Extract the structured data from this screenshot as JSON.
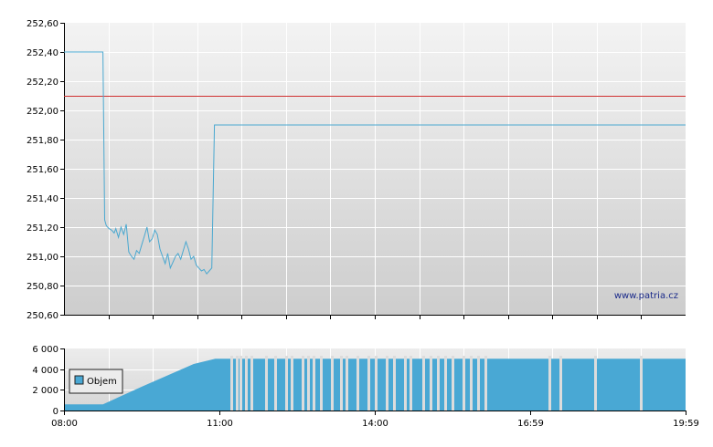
{
  "watermark": "www.patria.cz",
  "colors": {
    "price_line": "#4aa8d0",
    "reference_line": "#d03030",
    "volume_fill": "#49a8d4",
    "grid": "#ffffff",
    "plot_bg_top": "#f2f2f2",
    "plot_bg_bottom": "#cfcfcf"
  },
  "chart_data": [
    {
      "type": "line",
      "name": "price",
      "ylim": [
        250.6,
        252.6
      ],
      "y_ticks": [
        250.6,
        250.8,
        251.0,
        251.2,
        251.4,
        251.6,
        251.8,
        252.0,
        252.2,
        252.4,
        252.6
      ],
      "y_tick_labels": [
        "250,60",
        "250,80",
        "251,00",
        "251,20",
        "251,40",
        "251,60",
        "251,80",
        "252,00",
        "252,20",
        "252,40",
        "252,60"
      ],
      "reference_value": 252.1,
      "series": [
        {
          "x": [
            "08:00",
            "08:45",
            "08:47",
            "08:49",
            "08:52",
            "08:55",
            "08:58",
            "09:00",
            "09:03",
            "09:06",
            "09:09",
            "09:12",
            "09:15",
            "09:18",
            "09:21",
            "09:24",
            "09:27",
            "09:30",
            "09:33",
            "09:36",
            "09:39",
            "09:42",
            "09:45",
            "09:48",
            "09:51",
            "09:54",
            "09:57",
            "10:00",
            "10:03",
            "10:06",
            "10:09",
            "10:12",
            "10:15",
            "10:18",
            "10:21",
            "10:24",
            "10:27",
            "10:30",
            "10:33",
            "10:36",
            "10:39",
            "10:42",
            "10:45",
            "10:48",
            "10:51",
            "10:54",
            "10:57",
            "10:59",
            "11:00",
            "11:03",
            "19:59"
          ],
          "values": [
            252.4,
            252.4,
            251.25,
            251.21,
            251.19,
            251.18,
            251.16,
            251.19,
            251.13,
            251.2,
            251.15,
            251.22,
            251.03,
            251.0,
            250.98,
            251.04,
            251.02,
            251.08,
            251.14,
            251.2,
            251.1,
            251.12,
            251.18,
            251.15,
            251.05,
            251.0,
            250.95,
            251.02,
            250.92,
            250.96,
            251.0,
            251.02,
            250.98,
            251.04,
            251.1,
            251.05,
            250.98,
            251.0,
            250.94,
            250.92,
            250.9,
            250.91,
            250.88,
            250.9,
            250.92,
            251.9,
            251.9,
            251.9,
            251.9,
            251.9,
            251.9
          ]
        }
      ]
    },
    {
      "type": "bar",
      "name": "volume",
      "ylim": [
        0,
        6000
      ],
      "y_ticks": [
        0,
        2000,
        4000,
        6000
      ],
      "y_tick_labels": [
        "0",
        "2 000",
        "4 000",
        "6 000"
      ],
      "legend": "Objem",
      "x_ticks": [
        "08:00",
        "11:00",
        "14:00",
        "16:59",
        "19:59"
      ],
      "series": [
        {
          "x": [
            "08:00",
            "08:45",
            "09:30",
            "10:30",
            "10:55",
            "11:00",
            "19:59"
          ],
          "values": [
            600,
            600,
            2300,
            4500,
            5000,
            5000,
            5000
          ]
        }
      ]
    }
  ]
}
